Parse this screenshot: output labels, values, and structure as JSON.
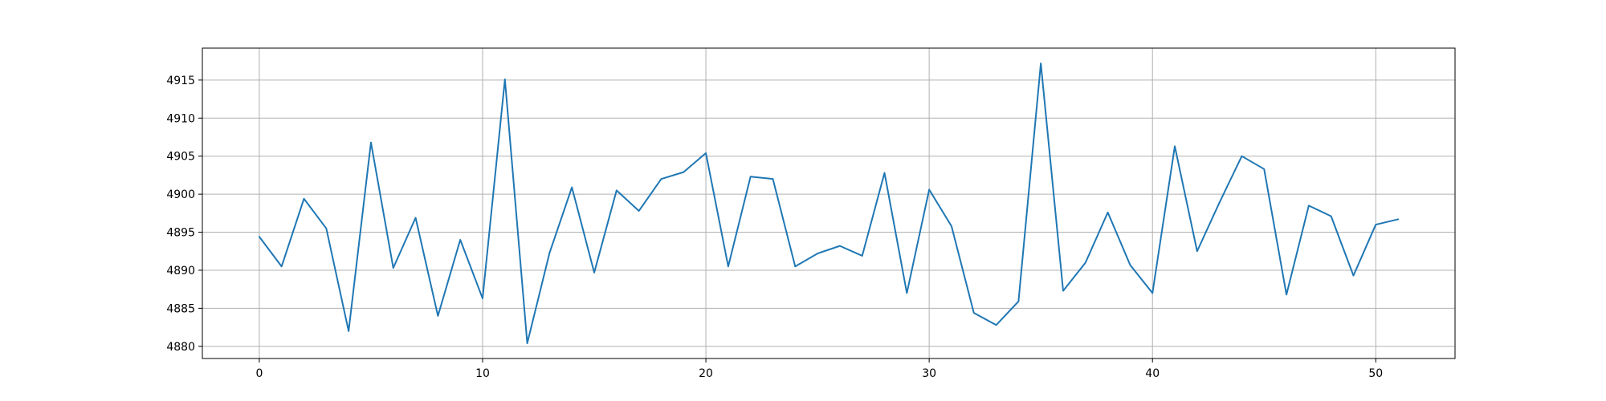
{
  "chart_data": {
    "type": "line",
    "title": "",
    "xlabel": "",
    "ylabel": "",
    "xlim": [
      -2.55,
      53.55
    ],
    "ylim": [
      4878.4,
      4919.2
    ],
    "xticks": [
      0,
      10,
      20,
      30,
      40,
      50
    ],
    "yticks": [
      4880,
      4885,
      4890,
      4895,
      4900,
      4905,
      4910,
      4915
    ],
    "xtick_labels": [
      "0",
      "10",
      "20",
      "30",
      "40",
      "50"
    ],
    "ytick_labels": [
      "4880",
      "4885",
      "4890",
      "4895",
      "4900",
      "4905",
      "4910",
      "4915"
    ],
    "grid": true,
    "legend": "none",
    "series": [
      {
        "color": "#1f77b4",
        "x": [
          0,
          1,
          2,
          3,
          4,
          5,
          6,
          7,
          8,
          9,
          10,
          11,
          12,
          13,
          14,
          15,
          16,
          17,
          18,
          19,
          20,
          21,
          22,
          23,
          24,
          25,
          26,
          27,
          28,
          29,
          30,
          31,
          32,
          33,
          34,
          35,
          36,
          37,
          38,
          39,
          40,
          41,
          42,
          43,
          44,
          45,
          46,
          47,
          48,
          49,
          50,
          51
        ],
        "y": [
          4894.4,
          4890.5,
          4899.4,
          4895.5,
          4882.0,
          4906.8,
          4890.3,
          4896.9,
          4884.0,
          4894.0,
          4886.3,
          4915.1,
          4880.4,
          4892.3,
          4900.9,
          4889.7,
          4900.5,
          4897.8,
          4902.0,
          4902.9,
          4905.4,
          4890.5,
          4902.3,
          4902.0,
          4890.5,
          4892.2,
          4893.2,
          4891.9,
          4902.8,
          4887.0,
          4900.6,
          4895.8,
          4884.4,
          4882.8,
          4885.9,
          4917.2,
          4887.3,
          4891.0,
          4897.6,
          4890.7,
          4887.0,
          4906.3,
          4892.5,
          4898.9,
          4905.0,
          4903.3,
          4886.8,
          4898.5,
          4897.1,
          4889.3,
          4896.0,
          4896.7
        ]
      }
    ]
  }
}
